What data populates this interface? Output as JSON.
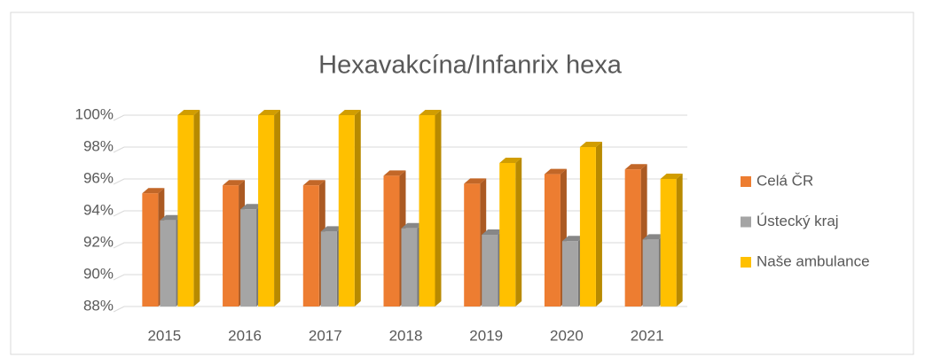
{
  "chart_data": {
    "type": "bar",
    "title": "Hexavakcína/Infanrix hexa",
    "categories": [
      "2015",
      "2016",
      "2017",
      "2018",
      "2019",
      "2020",
      "2021"
    ],
    "series": [
      {
        "name": "Celá ČR",
        "color": "#ed7d31",
        "values": [
          95.1,
          95.6,
          95.6,
          96.2,
          95.7,
          96.3,
          96.6
        ]
      },
      {
        "name": "Ústecký kraj",
        "color": "#a5a5a5",
        "values": [
          93.4,
          94.1,
          92.7,
          92.9,
          92.5,
          92.1,
          92.2
        ]
      },
      {
        "name": "Naše ambulance",
        "color": "#ffc000",
        "values": [
          100,
          100,
          100,
          100,
          97,
          98,
          96
        ]
      }
    ],
    "ylim": [
      88,
      100
    ],
    "yticks": [
      {
        "value": 88,
        "label": "88%"
      },
      {
        "value": 90,
        "label": "90%"
      },
      {
        "value": 92,
        "label": "92%"
      },
      {
        "value": 94,
        "label": "94%"
      },
      {
        "value": 96,
        "label": "96%"
      },
      {
        "value": 98,
        "label": "98%"
      },
      {
        "value": 100,
        "label": "100%"
      }
    ],
    "grid": true,
    "legend": "right"
  }
}
